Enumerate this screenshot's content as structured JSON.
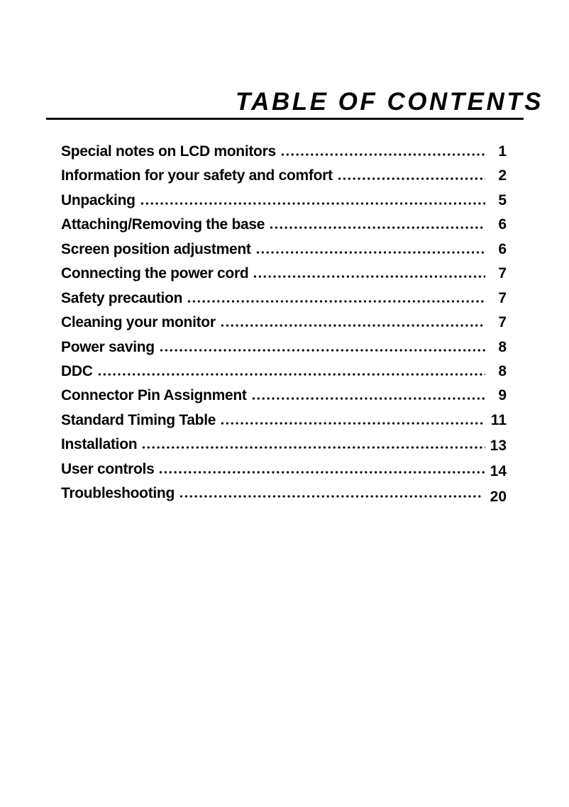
{
  "page": {
    "title": "TABLE OF CONTENTS"
  },
  "colors": {
    "text": "#000000",
    "background": "#ffffff"
  },
  "toc": {
    "entries": [
      {
        "label": "Special notes on LCD monitors",
        "page": "1"
      },
      {
        "label": "Information for your safety and comfort",
        "page": "2"
      },
      {
        "label": "Unpacking",
        "page": "5"
      },
      {
        "label": "Attaching/Removing the base",
        "page": "6"
      },
      {
        "label": "Screen position adjustment",
        "page": "6"
      },
      {
        "label": "Connecting the power cord",
        "page": "7"
      },
      {
        "label": "Safety precaution",
        "page": "7"
      },
      {
        "label": "Cleaning your monitor",
        "page": "7"
      },
      {
        "label": "Power saving",
        "page": "8"
      },
      {
        "label": "DDC",
        "page": "8"
      },
      {
        "label": "Connector Pin Assignment",
        "page": "9"
      },
      {
        "label": "Standard Timing Table",
        "page": "11"
      },
      {
        "label": "Installation",
        "page": "13"
      },
      {
        "label": "User controls",
        "page": "14"
      },
      {
        "label": "Troubleshooting",
        "page": "20"
      }
    ]
  }
}
